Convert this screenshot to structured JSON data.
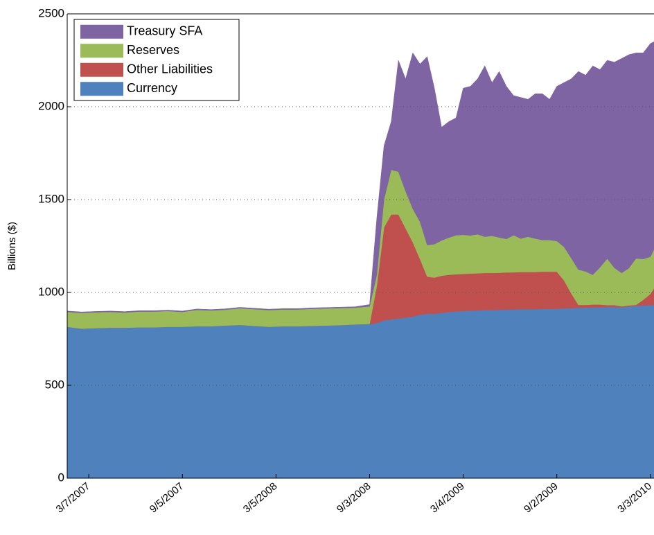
{
  "chart_data": {
    "type": "stacked_area",
    "y_label": "Billions ($)",
    "xlim": [
      "1/24/2007",
      "3/10/2010"
    ],
    "xticks": [
      "3/7/2007",
      "9/5/2007",
      "3/5/2008",
      "9/3/2008",
      "3/4/2009",
      "9/2/2009",
      "3/3/2010"
    ],
    "ylim": [
      0,
      2500
    ],
    "yticks": [
      0,
      500,
      1000,
      1500,
      2000,
      2500
    ],
    "grid": true,
    "legend": "upper left",
    "x": [
      "1/24/2007",
      "2/21/2007",
      "3/21/2007",
      "4/18/2007",
      "5/16/2007",
      "6/13/2007",
      "7/11/2007",
      "8/8/2007",
      "9/5/2007",
      "10/3/2007",
      "10/31/2007",
      "11/28/2007",
      "12/26/2007",
      "1/23/2008",
      "2/20/2008",
      "3/19/2008",
      "4/16/2008",
      "5/14/2008",
      "6/11/2008",
      "7/9/2008",
      "8/6/2008",
      "9/3/2008",
      "9/17/2008",
      "10/1/2008",
      "10/15/2008",
      "10/29/2008",
      "11/12/2008",
      "11/26/2008",
      "12/10/2008",
      "12/24/2008",
      "1/7/2009",
      "1/21/2009",
      "2/4/2009",
      "2/18/2009",
      "3/4/2009",
      "3/18/2009",
      "4/1/2009",
      "4/15/2009",
      "4/29/2009",
      "5/13/2009",
      "5/27/2009",
      "6/10/2009",
      "6/24/2009",
      "7/8/2009",
      "7/22/2009",
      "8/5/2009",
      "8/19/2009",
      "9/2/2009",
      "9/16/2009",
      "9/30/2009",
      "10/14/2009",
      "10/28/2009",
      "11/11/2009",
      "11/25/2009",
      "12/9/2009",
      "12/23/2009",
      "1/6/2010",
      "1/20/2010",
      "2/3/2010",
      "2/17/2010",
      "3/3/2010",
      "3/10/2010"
    ],
    "series": [
      {
        "name": "Currency",
        "color": "#4f81bd",
        "values": [
          815,
          805,
          808,
          810,
          810,
          812,
          812,
          815,
          815,
          818,
          818,
          822,
          825,
          820,
          815,
          818,
          818,
          820,
          822,
          824,
          828,
          830,
          835,
          850,
          855,
          860,
          865,
          870,
          880,
          885,
          885,
          890,
          895,
          898,
          900,
          902,
          903,
          905,
          905,
          906,
          908,
          908,
          910,
          910,
          910,
          912,
          912,
          912,
          915,
          915,
          918,
          918,
          920,
          920,
          922,
          922,
          920,
          925,
          928,
          930,
          932,
          932
        ]
      },
      {
        "name": "Other Liabilities",
        "color": "#c0504d",
        "values": [
          0,
          0,
          0,
          0,
          0,
          0,
          0,
          0,
          0,
          0,
          0,
          0,
          0,
          0,
          0,
          0,
          0,
          0,
          0,
          0,
          0,
          0,
          200,
          500,
          565,
          560,
          480,
          400,
          300,
          200,
          195,
          200,
          200,
          200,
          200,
          200,
          200,
          200,
          200,
          200,
          200,
          200,
          200,
          200,
          200,
          200,
          200,
          200,
          150,
          80,
          15,
          15,
          15,
          15,
          10,
          10,
          5,
          5,
          5,
          30,
          60,
          90
        ]
      },
      {
        "name": "Reserves",
        "color": "#9bbb59",
        "values": [
          80,
          85,
          85,
          85,
          82,
          85,
          85,
          85,
          80,
          88,
          85,
          85,
          90,
          90,
          90,
          90,
          90,
          92,
          92,
          92,
          90,
          95,
          60,
          150,
          240,
          230,
          200,
          180,
          200,
          170,
          180,
          190,
          200,
          210,
          210,
          205,
          210,
          195,
          200,
          190,
          180,
          200,
          180,
          190,
          180,
          170,
          170,
          165,
          180,
          190,
          190,
          180,
          160,
          200,
          250,
          200,
          180,
          200,
          250,
          220,
          200,
          210
        ]
      },
      {
        "name": "Treasury SFA",
        "color": "#7e64a2",
        "values": [
          5,
          5,
          5,
          5,
          5,
          5,
          5,
          5,
          5,
          5,
          5,
          5,
          5,
          5,
          5,
          5,
          5,
          5,
          5,
          5,
          5,
          10,
          305,
          290,
          260,
          600,
          605,
          840,
          850,
          1015,
          840,
          610,
          625,
          632,
          790,
          803,
          837,
          920,
          825,
          894,
          822,
          752,
          760,
          740,
          780,
          788,
          758,
          833,
          885,
          965,
          1067,
          1057,
          1125,
          1065,
          1068,
          1108,
          1155,
          1150,
          1107,
          1110,
          1148,
          1118
        ]
      }
    ]
  }
}
